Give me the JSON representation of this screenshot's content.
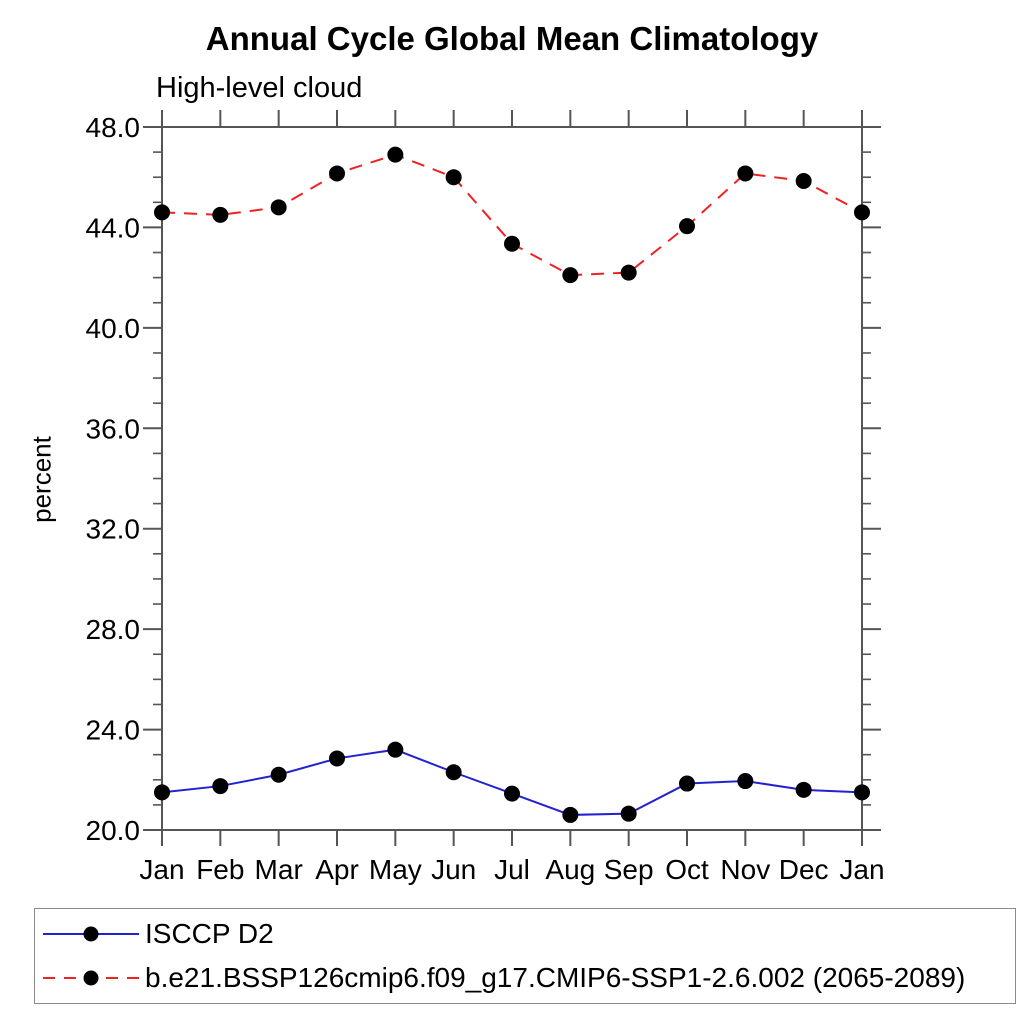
{
  "chart_data": {
    "type": "line",
    "title": "Annual Cycle Global Mean Climatology",
    "subtitle": "High-level cloud",
    "xlabel": "",
    "ylabel": "percent",
    "categories": [
      "Jan",
      "Feb",
      "Mar",
      "Apr",
      "May",
      "Jun",
      "Jul",
      "Aug",
      "Sep",
      "Oct",
      "Nov",
      "Dec",
      "Jan"
    ],
    "series": [
      {
        "name": "ISCCP D2",
        "color": "#2222d2",
        "line_style": "solid",
        "marker": "circle",
        "marker_color": "#000000",
        "values": [
          21.5,
          21.75,
          22.2,
          22.85,
          23.2,
          22.3,
          21.45,
          20.6,
          20.65,
          21.85,
          21.95,
          21.6,
          21.5
        ]
      },
      {
        "name": "b.e21.BSSP126cmip6.f09_g17.CMIP6-SSP1-2.6.002 (2065-2089)",
        "color": "#ee2222",
        "line_style": "dashed",
        "marker": "circle",
        "marker_color": "#000000",
        "values": [
          44.6,
          44.5,
          44.8,
          46.15,
          46.9,
          46.0,
          43.35,
          42.1,
          42.2,
          44.05,
          46.15,
          45.85,
          44.6
        ]
      }
    ],
    "ylim": [
      20,
      48
    ],
    "y_tick_labels": [
      "20.0",
      "24.0",
      "28.0",
      "32.0",
      "36.0",
      "40.0",
      "44.0",
      "48.0"
    ],
    "y_major_tick_step": 4,
    "y_minor_tick_step": 1,
    "grid": false,
    "legend_position": "bottom-box",
    "axis_color": "#555555",
    "text_color": "#000000"
  }
}
